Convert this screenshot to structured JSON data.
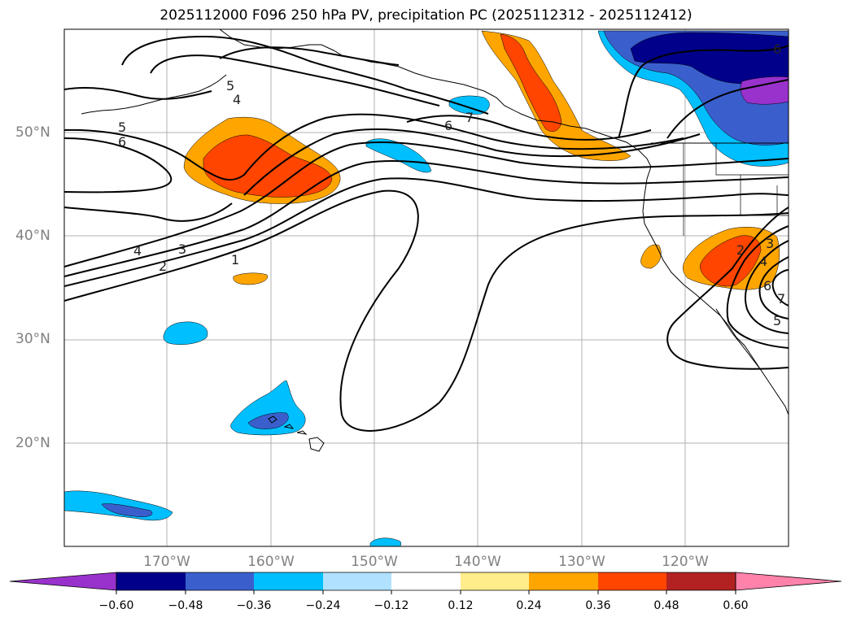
{
  "title": "2025112000 F096 250 hPa PV, precipitation PC (2025112312 - 2025112412)",
  "map": {
    "lat_labels": [
      "50°N",
      "40°N",
      "30°N",
      "20°N"
    ],
    "lon_labels": [
      "170°W",
      "160°W",
      "150°W",
      "140°W",
      "130°W",
      "120°W"
    ],
    "gridlines": true,
    "pv_contour_labels": [
      "5",
      "4",
      "5",
      "6",
      "6",
      "7",
      "4",
      "3",
      "2",
      "1",
      "2",
      "3",
      "4",
      "6",
      "7",
      "5",
      "6"
    ]
  },
  "colorbar": {
    "ticks": [
      "−0.60",
      "−0.48",
      "−0.36",
      "−0.24",
      "−0.12",
      "0.12",
      "0.24",
      "0.36",
      "0.48",
      "0.60"
    ],
    "colors": [
      "#9932cc",
      "#00008b",
      "#3a5fcd",
      "#00bfff",
      "#b0e2ff",
      "#ffffff",
      "#ffec8b",
      "#ffa500",
      "#ff4500",
      "#b22222",
      "#ff82ab"
    ]
  },
  "colors": {
    "land_outline": "#000000",
    "gridline": "#b0b0b0",
    "contour": "#000000"
  }
}
